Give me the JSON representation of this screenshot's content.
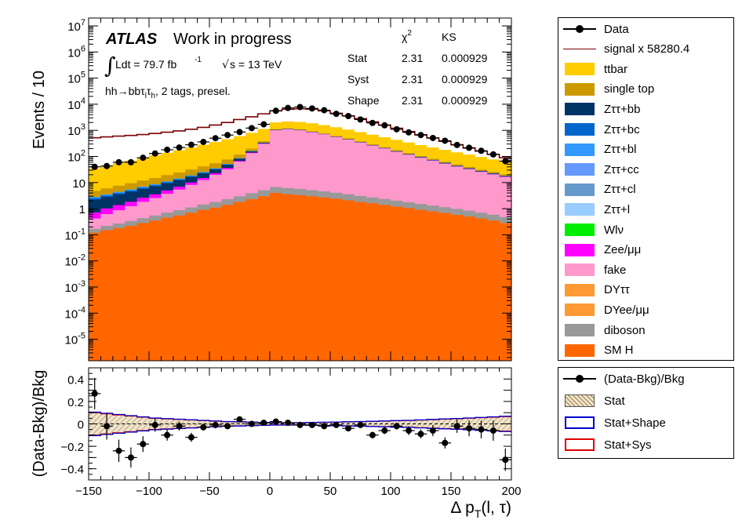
{
  "header": {
    "atlas_label": "ATLAS",
    "atlas_sub": "Work in progress",
    "lumi_text": "Ldt = 79.7 fb",
    "lumi_exp": "-1",
    "energy_text": "s = 13 TeV",
    "selection_text": "hh→bbτ",
    "selection_sub1": "l",
    "selection_mid": "τ",
    "selection_sub2": "h",
    "selection_tail": ", 2 tags, presel."
  },
  "stats_table": {
    "col_chi2": "χ",
    "col_chi2_sup": "2",
    "col_ks": "KS",
    "rows": [
      {
        "label": "Stat",
        "chi2": "2.31",
        "ks": "0.000929"
      },
      {
        "label": "Syst",
        "chi2": "2.31",
        "ks": "0.000929"
      },
      {
        "label": "Shape",
        "chi2": "2.31",
        "ks": "0.000929"
      }
    ]
  },
  "legend_main": [
    {
      "label": "Data",
      "style": "marker",
      "color": "#000000"
    },
    {
      "label": "signal x 58280.4",
      "style": "line",
      "color": "#7a0000"
    },
    {
      "label": "ttbar",
      "style": "fill",
      "color": "#ffcc00"
    },
    {
      "label": "single top",
      "style": "fill",
      "color": "#cc9900"
    },
    {
      "label": "Zττ+bb",
      "style": "fill",
      "color": "#003366"
    },
    {
      "label": "Zττ+bc",
      "style": "fill",
      "color": "#0066cc"
    },
    {
      "label": "Zττ+bl",
      "style": "fill",
      "color": "#3399ff"
    },
    {
      "label": "Zττ+cc",
      "style": "fill",
      "color": "#6699ff"
    },
    {
      "label": "Zττ+cl",
      "style": "fill",
      "color": "#6699cc"
    },
    {
      "label": "Zττ+l",
      "style": "fill",
      "color": "#99ccff"
    },
    {
      "label": "Wlν",
      "style": "fill",
      "color": "#00ee00"
    },
    {
      "label": "Zee/μμ",
      "style": "fill",
      "color": "#ff00ff"
    },
    {
      "label": "fake",
      "style": "fill",
      "color": "#ff99cc"
    },
    {
      "label": "DYττ",
      "style": "fill",
      "color": "#ff9933"
    },
    {
      "label": "DYee/μμ",
      "style": "fill",
      "color": "#ff9933"
    },
    {
      "label": "diboson",
      "style": "fill",
      "color": "#999999"
    },
    {
      "label": "SM H",
      "style": "fill",
      "color": "#ff6600"
    }
  ],
  "legend_ratio": [
    {
      "label": "(Data-Bkg)/Bkg",
      "style": "marker",
      "color": "#000000"
    },
    {
      "label": "Stat",
      "style": "hatch",
      "color": "#c8a46e"
    },
    {
      "label": "Stat+Shape",
      "style": "outline",
      "color": "#0000cc"
    },
    {
      "label": "Stat+Sys",
      "style": "outline",
      "color": "#dd0000"
    }
  ],
  "chart_data": [
    {
      "type": "area",
      "subtype": "stacked-histogram-log",
      "title": "",
      "xlabel": "",
      "ylabel": "Events / 10",
      "xlim": [
        -150,
        200
      ],
      "ylim": [
        1.5e-06,
        20000000.0
      ],
      "log_y": true,
      "bin_width": 10,
      "x_bin_low_edges": [
        -150,
        -140,
        -130,
        -120,
        -110,
        -100,
        -90,
        -80,
        -70,
        -60,
        -50,
        -40,
        -30,
        -20,
        -10,
        0,
        10,
        20,
        30,
        40,
        50,
        60,
        70,
        80,
        90,
        100,
        110,
        120,
        130,
        140,
        150,
        160,
        170,
        180,
        190
      ],
      "y_tick_labels": [
        "10^-5",
        "10^-4",
        "10^-3",
        "10^-2",
        "10^-1",
        "1",
        "10",
        "10^2",
        "10^3",
        "10^4",
        "10^5",
        "10^6",
        "10^7"
      ],
      "series": [
        {
          "name": "SM H",
          "color": "#ff6600",
          "values": [
            0.12,
            0.15,
            0.18,
            0.22,
            0.28,
            0.35,
            0.45,
            0.55,
            0.7,
            0.9,
            1.1,
            1.4,
            1.8,
            2.3,
            3.0,
            4.0,
            3.6,
            3.3,
            3.0,
            2.7,
            2.4,
            2.1,
            1.8,
            1.6,
            1.4,
            1.2,
            1.05,
            0.9,
            0.78,
            0.68,
            0.58,
            0.5,
            0.42,
            0.35,
            0.28
          ]
        },
        {
          "name": "diboson",
          "color": "#999999",
          "values": [
            0.05,
            0.07,
            0.09,
            0.12,
            0.15,
            0.2,
            0.26,
            0.33,
            0.42,
            0.55,
            0.7,
            0.9,
            1.2,
            1.6,
            2.1,
            2.8,
            2.6,
            2.4,
            2.1,
            1.9,
            1.7,
            1.5,
            1.3,
            1.1,
            0.95,
            0.82,
            0.72,
            0.62,
            0.54,
            0.46,
            0.4,
            0.34,
            0.28,
            0.24,
            0.2
          ]
        },
        {
          "name": "fake",
          "color": "#ff99cc",
          "values": [
            0.25,
            0.4,
            0.6,
            0.9,
            1.4,
            2.0,
            3.0,
            4.5,
            7,
            11,
            18,
            30,
            60,
            130,
            300,
            1000,
            1100,
            1000,
            850,
            700,
            560,
            440,
            340,
            260,
            200,
            150,
            115,
            88,
            68,
            52,
            40,
            32,
            25,
            20,
            16
          ]
        },
        {
          "name": "Zee/μμ",
          "color": "#ff00ff",
          "values": [
            0.3,
            0.4,
            0.5,
            0.6,
            0.8,
            1.0,
            1.3,
            1.6,
            2.0,
            2.5,
            3,
            4,
            5,
            6,
            7,
            8,
            7,
            6,
            5,
            4,
            3.5,
            3,
            2.5,
            2,
            1.7,
            1.4,
            1.2,
            1.0,
            0.8,
            0.7,
            0.6,
            0.5,
            0.4,
            0.35,
            0.3
          ]
        },
        {
          "name": "Zττ+bb",
          "color": "#003366",
          "values": [
            1.5,
            1.8,
            2.2,
            2.6,
            3.1,
            3.7,
            4.4,
            5.3,
            6.3,
            7.5,
            9,
            11,
            13,
            15,
            18,
            20,
            18,
            16,
            14,
            12,
            10,
            8.5,
            7,
            6,
            5,
            4.2,
            3.5,
            3,
            2.5,
            2.1,
            1.8,
            1.5,
            1.3,
            1.1,
            0.9
          ]
        },
        {
          "name": "Zττ+bc",
          "color": "#0066cc",
          "values": [
            0.3,
            0.35,
            0.42,
            0.5,
            0.6,
            0.72,
            0.86,
            1.0,
            1.2,
            1.45,
            1.7,
            2.0,
            2.4,
            2.8,
            3.2,
            3.6,
            3.3,
            3.0,
            2.6,
            2.3,
            2.0,
            1.7,
            1.4,
            1.2,
            1.0,
            0.85,
            0.72,
            0.6,
            0.5,
            0.42,
            0.36,
            0.3,
            0.25,
            0.21,
            0.18
          ]
        },
        {
          "name": "Zττ+bl",
          "color": "#3399ff",
          "values": [
            0.3,
            0.35,
            0.42,
            0.5,
            0.6,
            0.72,
            0.86,
            1.0,
            1.2,
            1.45,
            1.7,
            2.0,
            2.4,
            2.8,
            3.2,
            3.6,
            3.3,
            3.0,
            2.6,
            2.3,
            2.0,
            1.7,
            1.4,
            1.2,
            1.0,
            0.85,
            0.72,
            0.6,
            0.5,
            0.42,
            0.36,
            0.3,
            0.25,
            0.21,
            0.18
          ]
        },
        {
          "name": "single top",
          "color": "#cc9900",
          "values": [
            2,
            2.5,
            3.2,
            4,
            5,
            6.3,
            8,
            10,
            12.5,
            16,
            20,
            25,
            32,
            40,
            50,
            60,
            55,
            50,
            43,
            37,
            31,
            26,
            22,
            18,
            15,
            12.5,
            10.5,
            8.8,
            7.3,
            6.1,
            5.1,
            4.3,
            3.6,
            3.0,
            2.5
          ]
        },
        {
          "name": "ttbar",
          "color": "#ffcc00",
          "values": [
            30,
            38,
            48,
            60,
            76,
            96,
            120,
            150,
            190,
            240,
            300,
            380,
            480,
            600,
            750,
            900,
            1000,
            1020,
            950,
            830,
            700,
            580,
            480,
            390,
            320,
            260,
            210,
            170,
            140,
            115,
            95,
            78,
            64,
            52,
            42
          ]
        }
      ],
      "signal": {
        "name": "signal x 58280.4",
        "color": "#7a0000",
        "values": [
          520,
          560,
          600,
          640,
          690,
          760,
          850,
          950,
          1100,
          1300,
          1600,
          2000,
          2600,
          3300,
          4300,
          5600,
          6400,
          6700,
          6500,
          5600,
          4500,
          3600,
          2800,
          2100,
          1600,
          1200,
          900,
          680,
          510,
          380,
          280,
          210,
          160,
          120,
          90
        ]
      },
      "data": {
        "name": "Data",
        "values": [
          40,
          43,
          60,
          60,
          89,
          130,
          180,
          220,
          280,
          360,
          500,
          660,
          860,
          1220,
          1700,
          5600,
          7200,
          7800,
          6900,
          5900,
          4300,
          3520,
          2600,
          1920,
          1560,
          1100,
          836,
          660,
          510,
          400,
          276,
          216,
          165,
          120,
          66
        ]
      }
    },
    {
      "type": "scatter",
      "subtype": "ratio",
      "title": "",
      "xlabel": "Δ p_T(l, τ)",
      "ylabel": "(Data-Bkg)/Bkg",
      "xlim": [
        -150,
        200
      ],
      "ylim": [
        -0.5,
        0.5
      ],
      "x_ticks": [
        -150,
        -100,
        -50,
        0,
        50,
        100,
        150,
        200
      ],
      "y_ticks": [
        -0.4,
        -0.2,
        0,
        0.2,
        0.4
      ],
      "x": [
        -145,
        -135,
        -125,
        -115,
        -105,
        -95,
        -85,
        -75,
        -65,
        -55,
        -45,
        -35,
        -25,
        -15,
        -5,
        5,
        15,
        25,
        35,
        45,
        55,
        65,
        75,
        85,
        95,
        105,
        115,
        125,
        135,
        145,
        155,
        165,
        175,
        185,
        195
      ],
      "values": [
        0.27,
        -0.02,
        -0.24,
        -0.3,
        -0.18,
        -0.01,
        -0.1,
        -0.02,
        -0.12,
        -0.03,
        -0.01,
        -0.02,
        0.04,
        0.0,
        0.01,
        0.02,
        0.01,
        -0.01,
        -0.01,
        -0.02,
        -0.01,
        -0.04,
        -0.01,
        -0.1,
        -0.06,
        -0.02,
        -0.06,
        -0.09,
        -0.06,
        -0.17,
        -0.02,
        -0.04,
        -0.05,
        -0.06,
        -0.32
      ],
      "errors": [
        0.14,
        0.12,
        0.1,
        0.09,
        0.07,
        0.06,
        0.05,
        0.04,
        0.04,
        0.03,
        0.03,
        0.02,
        0.02,
        0.02,
        0.02,
        0.01,
        0.01,
        0.01,
        0.01,
        0.02,
        0.02,
        0.02,
        0.02,
        0.03,
        0.03,
        0.03,
        0.04,
        0.04,
        0.05,
        0.05,
        0.06,
        0.07,
        0.08,
        0.09,
        0.1
      ],
      "band_halfwidth": [
        0.1,
        0.09,
        0.08,
        0.07,
        0.06,
        0.05,
        0.045,
        0.04,
        0.035,
        0.03,
        0.025,
        0.02,
        0.018,
        0.015,
        0.012,
        0.01,
        0.01,
        0.01,
        0.012,
        0.014,
        0.016,
        0.018,
        0.02,
        0.022,
        0.025,
        0.028,
        0.03,
        0.034,
        0.038,
        0.042,
        0.046,
        0.05,
        0.055,
        0.06,
        0.065
      ]
    }
  ]
}
